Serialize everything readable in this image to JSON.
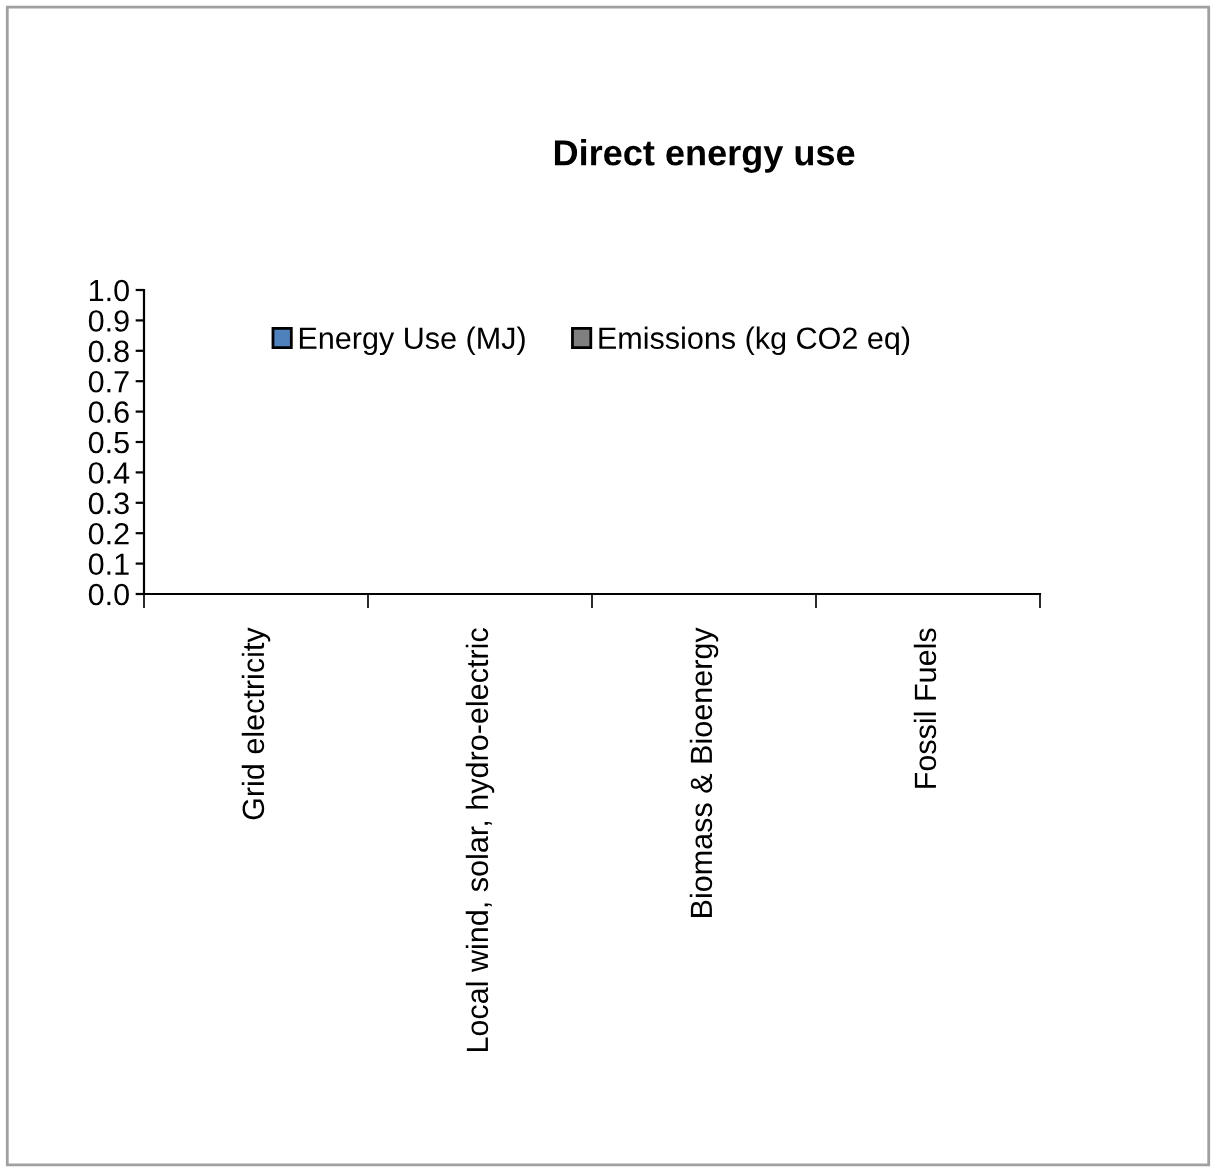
{
  "chart_data": {
    "type": "bar",
    "title": "Direct energy use",
    "categories": [
      "Grid electricity",
      "Local wind, solar, hydro-electric",
      "Biomass & Bioenergy",
      "Fossil Fuels"
    ],
    "series": [
      {
        "name": "Energy Use (MJ)",
        "color": "#4f81bd",
        "values": [
          null,
          null,
          null,
          null
        ]
      },
      {
        "name": "Emissions (kg CO2 eq)",
        "color": "#7f7f7f",
        "values": [
          null,
          null,
          null,
          null
        ]
      }
    ],
    "ylim": [
      0,
      1
    ],
    "yticks": [
      {
        "value": 0,
        "label": "0.0"
      },
      {
        "value": 0.1,
        "label": "0.1"
      },
      {
        "value": 0.2,
        "label": "0.2"
      },
      {
        "value": 0.3,
        "label": "0.3"
      },
      {
        "value": 0.4,
        "label": "0.4"
      },
      {
        "value": 0.5,
        "label": "0.5"
      },
      {
        "value": 0.6,
        "label": "0.6"
      },
      {
        "value": 0.7,
        "label": "0.7"
      },
      {
        "value": 0.8,
        "label": "0.8"
      },
      {
        "value": 0.9,
        "label": "0.9"
      },
      {
        "value": 1,
        "label": "1.0"
      }
    ],
    "grid": false,
    "legend": "top"
  }
}
